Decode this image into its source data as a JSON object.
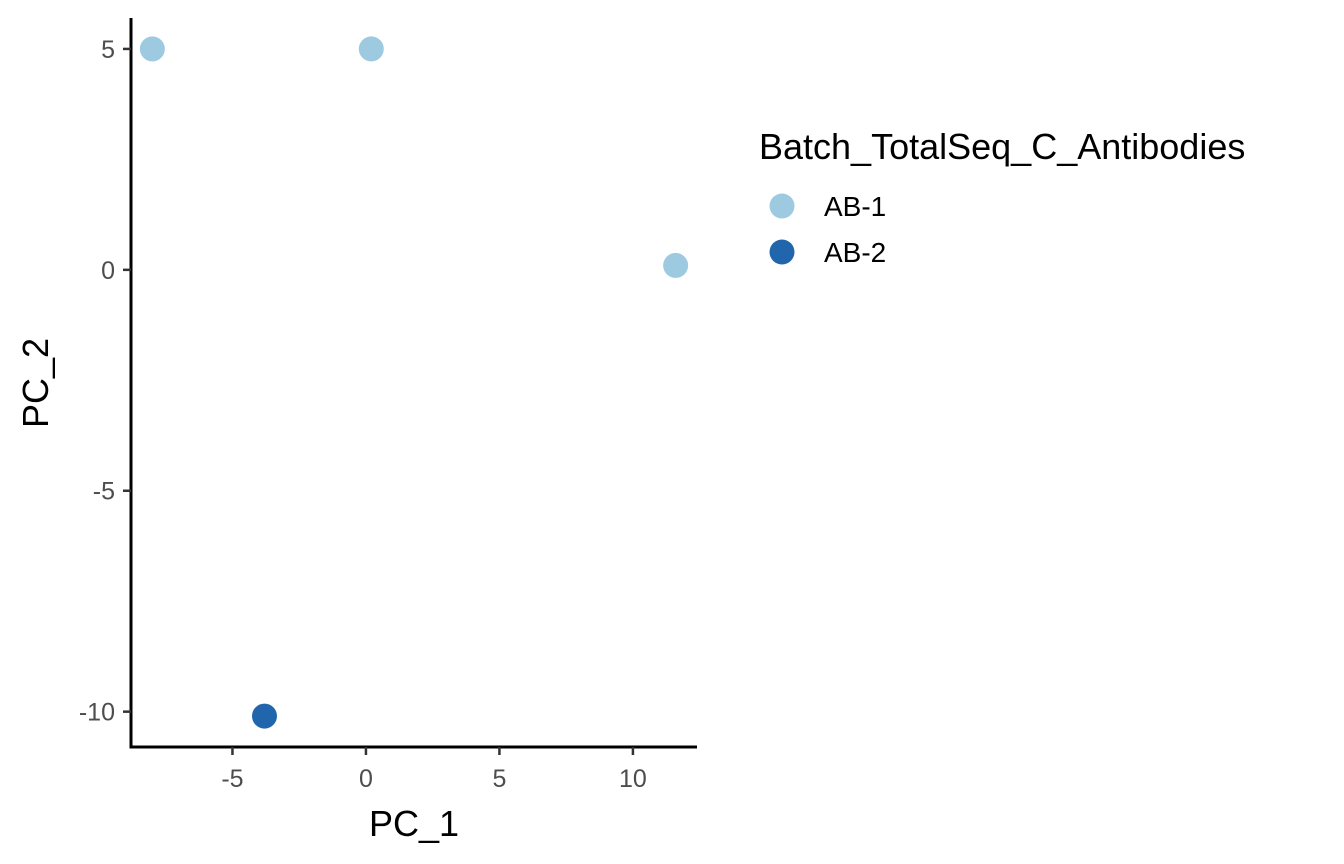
{
  "chart_data": {
    "type": "scatter",
    "title": "",
    "xlabel": "PC_1",
    "ylabel": "PC_2",
    "xlim": [
      -8.8,
      12.4
    ],
    "ylim": [
      -10.8,
      5.7
    ],
    "x_ticks": [
      -5,
      0,
      5,
      10
    ],
    "y_ticks": [
      5,
      0,
      -5,
      -10
    ],
    "grid": false,
    "legend_position": "right",
    "legend": {
      "title": "Batch_TotalSeq_C_Antibodies",
      "entries": [
        {
          "label": "AB-1",
          "color": "#9ecae1"
        },
        {
          "label": "AB-2",
          "color": "#2166ac"
        }
      ]
    },
    "series": [
      {
        "name": "AB-1",
        "color": "#9ecae1",
        "points": [
          {
            "x": -8.0,
            "y": 5.0
          },
          {
            "x": 0.2,
            "y": 5.0
          },
          {
            "x": 11.6,
            "y": 0.1
          }
        ]
      },
      {
        "name": "AB-2",
        "color": "#2166ac",
        "points": [
          {
            "x": -3.8,
            "y": -10.1
          }
        ]
      }
    ]
  }
}
